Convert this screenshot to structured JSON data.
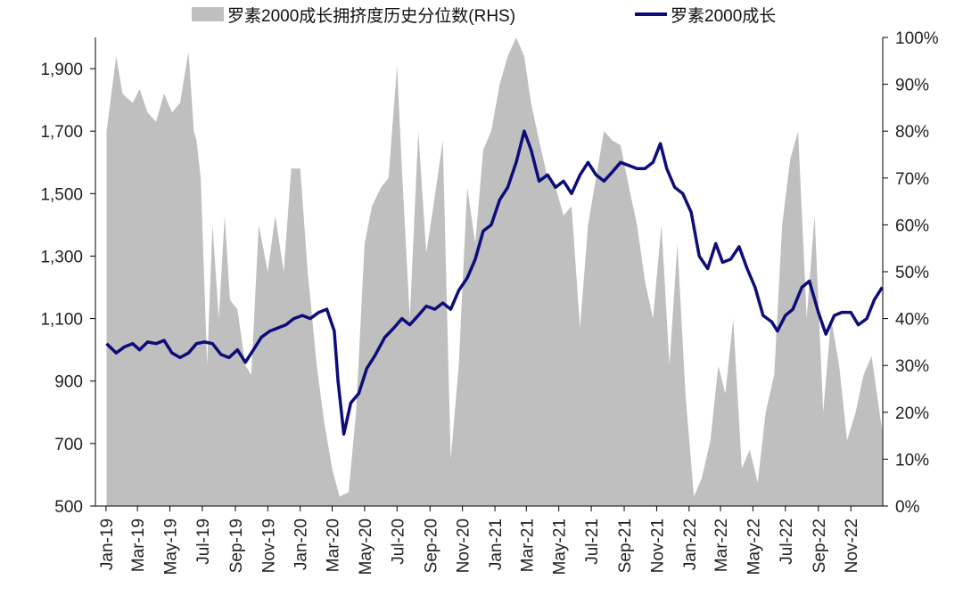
{
  "chart_data": {
    "type": "area+line",
    "title": "",
    "legend_position": "top",
    "x_tick_labels": [
      "Jan-19",
      "Mar-19",
      "May-19",
      "Jul-19",
      "Sep-19",
      "Nov-19",
      "Jan-20",
      "Mar-20",
      "May-20",
      "Jul-20",
      "Sep-20",
      "Nov-20",
      "Jan-21",
      "Mar-21",
      "May-21",
      "Jul-21",
      "Sep-21",
      "Nov-21",
      "Jan-22",
      "Mar-22",
      "May-22",
      "Jul-22",
      "Sep-22",
      "Nov-22"
    ],
    "left_axis": {
      "ylim": [
        500,
        2000
      ],
      "ticks": [
        500,
        700,
        900,
        1100,
        1300,
        1500,
        1700,
        1900
      ],
      "tick_labels": [
        "500",
        "700",
        "900",
        "1,100",
        "1,300",
        "1,500",
        "1,700",
        "1,900"
      ]
    },
    "right_axis": {
      "ylim": [
        0,
        100
      ],
      "ticks": [
        0,
        10,
        20,
        30,
        40,
        50,
        60,
        70,
        80,
        90,
        100
      ],
      "tick_labels": [
        "0%",
        "10%",
        "20%",
        "30%",
        "40%",
        "50%",
        "60%",
        "70%",
        "80%",
        "90%",
        "100%"
      ]
    },
    "colors": {
      "area": "#bfbfbf",
      "line": "#0d0d7a",
      "axis": "#000000"
    },
    "series": [
      {
        "name": "罗素2000成长拥挤度历史分位数(RHS)",
        "kind": "area",
        "axis": "right",
        "x": [
          "2019-01-02",
          "2019-01-20",
          "2019-02-01",
          "2019-02-20",
          "2019-03-05",
          "2019-03-20",
          "2019-04-05",
          "2019-04-20",
          "2019-05-05",
          "2019-05-20",
          "2019-06-05",
          "2019-06-15",
          "2019-06-20",
          "2019-06-28",
          "2019-07-10",
          "2019-07-20",
          "2019-08-01",
          "2019-08-12",
          "2019-08-22",
          "2019-09-05",
          "2019-09-20",
          "2019-10-01",
          "2019-10-15",
          "2019-11-01",
          "2019-11-15",
          "2019-12-01",
          "2019-12-15",
          "2020-01-01",
          "2020-01-15",
          "2020-02-01",
          "2020-02-15",
          "2020-03-01",
          "2020-03-15",
          "2020-04-01",
          "2020-04-15",
          "2020-05-01",
          "2020-05-15",
          "2020-06-01",
          "2020-06-15",
          "2020-07-01",
          "2020-07-10",
          "2020-07-25",
          "2020-08-10",
          "2020-08-25",
          "2020-09-10",
          "2020-09-25",
          "2020-10-10",
          "2020-10-25",
          "2020-11-10",
          "2020-11-25",
          "2020-12-10",
          "2020-12-25",
          "2021-01-10",
          "2021-01-25",
          "2021-02-10",
          "2021-02-25",
          "2021-03-10",
          "2021-03-25",
          "2021-04-10",
          "2021-04-25",
          "2021-05-10",
          "2021-05-25",
          "2021-06-10",
          "2021-06-25",
          "2021-07-10",
          "2021-07-25",
          "2021-08-10",
          "2021-08-25",
          "2021-09-10",
          "2021-09-25",
          "2021-10-10",
          "2021-10-25",
          "2021-11-10",
          "2021-11-25",
          "2021-12-10",
          "2021-12-25",
          "2022-01-10",
          "2022-01-25",
          "2022-02-10",
          "2022-02-25",
          "2022-03-10",
          "2022-03-25",
          "2022-04-10",
          "2022-04-25",
          "2022-05-10",
          "2022-05-25",
          "2022-06-10",
          "2022-06-25",
          "2022-07-10",
          "2022-07-25",
          "2022-08-10",
          "2022-08-25",
          "2022-09-10",
          "2022-09-25",
          "2022-10-10",
          "2022-10-25",
          "2022-11-10",
          "2022-11-25",
          "2022-12-10",
          "2022-12-30"
        ],
        "values": [
          80,
          96,
          88,
          86,
          89,
          84,
          82,
          88,
          84,
          86,
          97,
          80,
          78,
          70,
          30,
          60,
          40,
          62,
          44,
          42,
          30,
          28,
          60,
          50,
          62,
          50,
          72,
          72,
          50,
          30,
          18,
          8,
          2,
          3,
          20,
          56,
          64,
          68,
          70,
          94,
          72,
          40,
          80,
          54,
          66,
          78,
          10,
          30,
          68,
          56,
          76,
          80,
          90,
          96,
          100,
          96,
          86,
          78,
          70,
          68,
          62,
          64,
          38,
          60,
          70,
          80,
          78,
          77,
          68,
          60,
          48,
          40,
          60,
          30,
          56,
          24,
          2,
          6,
          14,
          30,
          24,
          40,
          8,
          12,
          5,
          20,
          28,
          60,
          74,
          80,
          40,
          62,
          20,
          40,
          30,
          14,
          20,
          28,
          32,
          16
        ]
      },
      {
        "name": "罗素2000成长",
        "kind": "line",
        "axis": "left",
        "x": [
          "2019-01-02",
          "2019-01-20",
          "2019-02-05",
          "2019-02-20",
          "2019-03-05",
          "2019-03-20",
          "2019-04-05",
          "2019-04-20",
          "2019-05-05",
          "2019-05-20",
          "2019-06-05",
          "2019-06-20",
          "2019-07-05",
          "2019-07-20",
          "2019-08-05",
          "2019-08-20",
          "2019-09-05",
          "2019-09-20",
          "2019-10-05",
          "2019-10-20",
          "2019-11-05",
          "2019-11-20",
          "2019-12-05",
          "2019-12-20",
          "2020-01-05",
          "2020-01-20",
          "2020-02-05",
          "2020-02-20",
          "2020-03-05",
          "2020-03-12",
          "2020-03-23",
          "2020-04-05",
          "2020-04-20",
          "2020-05-05",
          "2020-05-20",
          "2020-06-08",
          "2020-06-25",
          "2020-07-10",
          "2020-07-25",
          "2020-08-10",
          "2020-08-25",
          "2020-09-10",
          "2020-09-25",
          "2020-10-10",
          "2020-10-25",
          "2020-11-10",
          "2020-11-25",
          "2020-12-10",
          "2020-12-25",
          "2021-01-10",
          "2021-01-25",
          "2021-02-10",
          "2021-02-25",
          "2021-03-10",
          "2021-03-25",
          "2021-04-10",
          "2021-04-25",
          "2021-05-10",
          "2021-05-25",
          "2021-06-10",
          "2021-06-25",
          "2021-07-10",
          "2021-07-25",
          "2021-08-10",
          "2021-08-25",
          "2021-09-10",
          "2021-09-25",
          "2021-10-10",
          "2021-10-25",
          "2021-11-08",
          "2021-11-20",
          "2021-12-05",
          "2021-12-20",
          "2022-01-05",
          "2022-01-20",
          "2022-02-05",
          "2022-02-20",
          "2022-03-05",
          "2022-03-20",
          "2022-04-05",
          "2022-04-20",
          "2022-05-05",
          "2022-05-20",
          "2022-06-05",
          "2022-06-16",
          "2022-07-01",
          "2022-07-15",
          "2022-08-01",
          "2022-08-15",
          "2022-09-01",
          "2022-09-15",
          "2022-10-01",
          "2022-10-15",
          "2022-11-01",
          "2022-11-15",
          "2022-12-01",
          "2022-12-15",
          "2022-12-30"
        ],
        "values": [
          1020,
          990,
          1010,
          1020,
          1000,
          1025,
          1020,
          1030,
          990,
          975,
          990,
          1020,
          1025,
          1020,
          985,
          975,
          1000,
          960,
          1000,
          1040,
          1060,
          1070,
          1080,
          1100,
          1110,
          1100,
          1120,
          1130,
          1060,
          900,
          730,
          830,
          860,
          940,
          980,
          1040,
          1070,
          1100,
          1080,
          1110,
          1140,
          1130,
          1150,
          1130,
          1190,
          1230,
          1290,
          1380,
          1400,
          1480,
          1520,
          1600,
          1700,
          1640,
          1540,
          1560,
          1520,
          1540,
          1500,
          1560,
          1600,
          1560,
          1540,
          1570,
          1600,
          1590,
          1580,
          1580,
          1600,
          1660,
          1580,
          1520,
          1500,
          1440,
          1300,
          1260,
          1340,
          1280,
          1290,
          1330,
          1260,
          1200,
          1110,
          1090,
          1060,
          1110,
          1130,
          1200,
          1220,
          1120,
          1050,
          1110,
          1120,
          1120,
          1080,
          1100,
          1160,
          1200
        ]
      }
    ]
  }
}
